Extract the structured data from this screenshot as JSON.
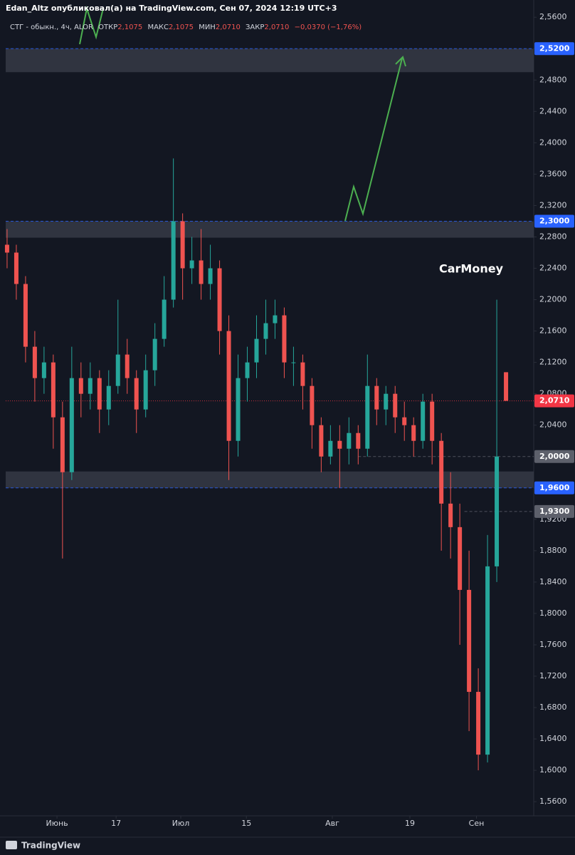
{
  "header": {
    "publisher": "Edan_Altz опубликовал(а) на TradingView.com, Сен 07, 2024 12:19 UTC+3"
  },
  "legend": {
    "symbol": "СТГ - обыкн., 4ч, ALOR",
    "open_label": "ОТКР",
    "open": "2,1075",
    "high_label": "МАКС",
    "high": "2,1075",
    "low_label": "МИН",
    "low": "2,0710",
    "close_label": "ЗАКР",
    "close": "2,0710",
    "change": "−0,0370 (−1,76%)"
  },
  "watermark": "CarMoney",
  "footer": "TradingView",
  "chart_data": {
    "type": "candlestick",
    "up_color": "#26a69a",
    "down_color": "#ef5350",
    "grid": false,
    "categories": [
      null,
      null,
      null,
      null,
      null,
      null,
      null,
      null,
      null,
      null,
      null,
      null,
      null,
      null,
      null,
      null,
      null,
      null,
      null,
      null,
      null,
      null,
      null,
      null,
      null,
      null,
      null,
      null,
      null,
      null,
      null,
      null,
      null,
      null,
      null,
      null,
      null,
      null,
      null,
      null,
      null,
      null,
      null,
      null,
      null,
      null,
      null,
      null,
      null,
      null,
      null,
      null,
      null,
      null,
      null
    ],
    "ohlc": [
      [
        2.27,
        2.29,
        2.24,
        2.26
      ],
      [
        2.26,
        2.27,
        2.2,
        2.22
      ],
      [
        2.22,
        2.23,
        2.12,
        2.14
      ],
      [
        2.14,
        2.16,
        2.07,
        2.1
      ],
      [
        2.1,
        2.14,
        2.08,
        2.12
      ],
      [
        2.12,
        2.13,
        2.01,
        2.05
      ],
      [
        2.05,
        2.07,
        1.87,
        1.98
      ],
      [
        1.98,
        2.14,
        1.97,
        2.1
      ],
      [
        2.1,
        2.12,
        2.05,
        2.08
      ],
      [
        2.08,
        2.12,
        2.06,
        2.1
      ],
      [
        2.1,
        2.11,
        2.03,
        2.06
      ],
      [
        2.06,
        2.11,
        2.04,
        2.09
      ],
      [
        2.09,
        2.2,
        2.08,
        2.13
      ],
      [
        2.13,
        2.15,
        2.08,
        2.1
      ],
      [
        2.1,
        2.11,
        2.03,
        2.06
      ],
      [
        2.06,
        2.13,
        2.05,
        2.11
      ],
      [
        2.11,
        2.17,
        2.09,
        2.15
      ],
      [
        2.15,
        2.23,
        2.14,
        2.2
      ],
      [
        2.2,
        2.38,
        2.19,
        2.3
      ],
      [
        2.3,
        2.31,
        2.2,
        2.24
      ],
      [
        2.24,
        2.28,
        2.22,
        2.25
      ],
      [
        2.25,
        2.29,
        2.2,
        2.22
      ],
      [
        2.22,
        2.27,
        2.2,
        2.24
      ],
      [
        2.24,
        2.25,
        2.13,
        2.16
      ],
      [
        2.16,
        2.18,
        1.97,
        2.02
      ],
      [
        2.02,
        2.13,
        2.0,
        2.1
      ],
      [
        2.1,
        2.14,
        2.07,
        2.12
      ],
      [
        2.12,
        2.18,
        2.1,
        2.15
      ],
      [
        2.15,
        2.2,
        2.13,
        2.17
      ],
      [
        2.17,
        2.2,
        2.15,
        2.18
      ],
      [
        2.18,
        2.19,
        2.1,
        2.12
      ],
      [
        2.12,
        2.14,
        2.09,
        2.12
      ],
      [
        2.12,
        2.13,
        2.06,
        2.09
      ],
      [
        2.09,
        2.1,
        2.01,
        2.04
      ],
      [
        2.04,
        2.05,
        1.98,
        2.0
      ],
      [
        2.0,
        2.04,
        1.99,
        2.02
      ],
      [
        2.02,
        2.04,
        1.96,
        2.01
      ],
      [
        2.01,
        2.05,
        1.99,
        2.03
      ],
      [
        2.03,
        2.04,
        1.99,
        2.01
      ],
      [
        2.01,
        2.13,
        2.0,
        2.09
      ],
      [
        2.09,
        2.1,
        2.04,
        2.06
      ],
      [
        2.06,
        2.09,
        2.04,
        2.08
      ],
      [
        2.08,
        2.09,
        2.03,
        2.05
      ],
      [
        2.05,
        2.07,
        2.02,
        2.04
      ],
      [
        2.04,
        2.05,
        2.0,
        2.02
      ],
      [
        2.02,
        2.08,
        2.01,
        2.07
      ],
      [
        2.07,
        2.08,
        1.99,
        2.02
      ],
      [
        2.02,
        2.03,
        1.88,
        1.94
      ],
      [
        1.94,
        1.98,
        1.87,
        1.91
      ],
      [
        1.91,
        1.94,
        1.76,
        1.83
      ],
      [
        1.83,
        1.88,
        1.65,
        1.7
      ],
      [
        1.7,
        1.73,
        1.6,
        1.62
      ],
      [
        1.62,
        1.9,
        1.61,
        1.86
      ],
      [
        1.86,
        2.2,
        1.84,
        2.0
      ],
      [
        2.1075,
        2.1075,
        2.071,
        2.071
      ]
    ],
    "xlim": [
      -0.15,
      57
    ],
    "xticks": [
      {
        "value": 5.4,
        "label": "Июнь"
      },
      {
        "value": 11.8,
        "label": "17"
      },
      {
        "value": 18.8,
        "label": "Июл"
      },
      {
        "value": 25.9,
        "label": "15"
      },
      {
        "value": 35.2,
        "label": "Авг"
      },
      {
        "value": 43.6,
        "label": "19"
      },
      {
        "value": 50.8,
        "label": "Сен"
      }
    ],
    "ylim": [
      1.542,
      2.582
    ],
    "yticks": [
      {
        "value": 1.56,
        "label": "1,5600"
      },
      {
        "value": 1.6,
        "label": "1,6000"
      },
      {
        "value": 1.64,
        "label": "1,6400"
      },
      {
        "value": 1.68,
        "label": "1,6800"
      },
      {
        "value": 1.72,
        "label": "1,7200"
      },
      {
        "value": 1.76,
        "label": "1,7600"
      },
      {
        "value": 1.8,
        "label": "1,8000"
      },
      {
        "value": 1.84,
        "label": "1,8400"
      },
      {
        "value": 1.88,
        "label": "1,8800"
      },
      {
        "value": 1.92,
        "label": "1,9200"
      },
      {
        "value": 1.96,
        "label": "1,9600"
      },
      {
        "value": 2.0,
        "label": "2,0000"
      },
      {
        "value": 2.04,
        "label": "2,0400"
      },
      {
        "value": 2.08,
        "label": "2,0800"
      },
      {
        "value": 2.12,
        "label": "2,1200"
      },
      {
        "value": 2.16,
        "label": "2,1600"
      },
      {
        "value": 2.2,
        "label": "2,2000"
      },
      {
        "value": 2.24,
        "label": "2,2400"
      },
      {
        "value": 2.28,
        "label": "2,2800"
      },
      {
        "value": 2.32,
        "label": "2,3200"
      },
      {
        "value": 2.36,
        "label": "2,3600"
      },
      {
        "value": 2.4,
        "label": "2,4000"
      },
      {
        "value": 2.44,
        "label": "2,4400"
      },
      {
        "value": 2.48,
        "label": "2,4800"
      },
      {
        "value": 2.52,
        "label": "2,5200"
      },
      {
        "value": 2.56,
        "label": "2,5600"
      }
    ],
    "zones": [
      [
        2.49,
        2.52
      ],
      [
        2.279,
        2.3
      ],
      [
        1.96,
        1.981
      ]
    ],
    "levels": [
      {
        "value": 2.52,
        "label": "2,5200",
        "color": "#2962ff",
        "start": -0.15
      },
      {
        "value": 2.3,
        "label": "2,3000",
        "color": "#2962ff",
        "start": -0.15
      },
      {
        "value": 2.071,
        "label": "2,0710",
        "color": "#f23645",
        "start": -0.15
      },
      {
        "value": 2.0,
        "label": "2,0000",
        "color": "#5d606b",
        "start": 38
      },
      {
        "value": 1.96,
        "label": "1,9600",
        "color": "#2962ff",
        "start": -0.15
      },
      {
        "value": 1.93,
        "label": "1,9300",
        "color": "#5d606b",
        "start": 49.5
      }
    ]
  }
}
